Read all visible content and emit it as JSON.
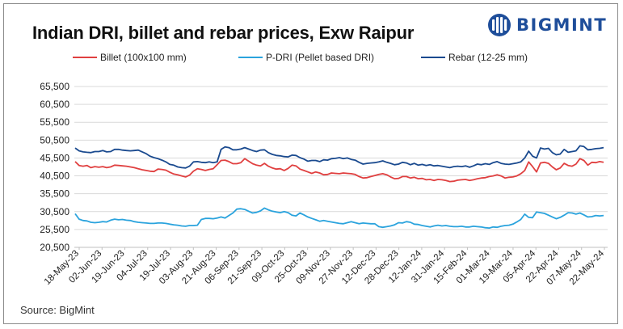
{
  "header": {
    "title": "Indian DRI, billet and rebar prices, Exw Raipur"
  },
  "brand": {
    "name": "BIGMINT",
    "color": "#1f4e9a"
  },
  "footer": {
    "source": "Source: BigMint"
  },
  "chart_data": {
    "type": "line",
    "title": "Indian DRI, billet and rebar prices, Exw Raipur",
    "xlabel": "",
    "ylabel": "",
    "ylim": [
      20500,
      65500
    ],
    "yticks": [
      "20,500",
      "25,500",
      "30,500",
      "35,500",
      "40,500",
      "45,500",
      "50,500",
      "55,500",
      "60,500",
      "65,500"
    ],
    "grid": true,
    "legend_position": "top",
    "x_tick_labels": [
      "18-May-23",
      "02-Jun-23",
      "19-Jun-23",
      "04-Jul-23",
      "19-Jul-23",
      "03-Aug-23",
      "21-Aug-23",
      "06-Sep-23",
      "21-Sep-23",
      "09-Oct-23",
      "25-Oct-23",
      "09-Nov-23",
      "27-Nov-23",
      "12-Dec-23",
      "28-Dec-23",
      "12-Jan-24",
      "31-Jan-24",
      "15-Feb-24",
      "01-Mar-24",
      "19-Mar-24",
      "05-Apr-24",
      "22-Apr-24",
      "07-May-24",
      "22-May-24"
    ],
    "series": [
      {
        "name": "Billet (100x100 mm)",
        "color": "#e04040",
        "values": [
          44500,
          43400,
          43200,
          43400,
          42800,
          43100,
          42900,
          43100,
          42800,
          43000,
          43500,
          43400,
          43300,
          43200,
          43000,
          42800,
          42500,
          42200,
          42000,
          41800,
          41700,
          42400,
          42300,
          42100,
          41500,
          41000,
          40800,
          40500,
          40200,
          40700,
          41800,
          42500,
          42300,
          42000,
          42300,
          42500,
          43600,
          44800,
          44900,
          44500,
          43900,
          43900,
          44200,
          45300,
          44600,
          43900,
          43500,
          43300,
          44000,
          43200,
          42700,
          42400,
          42500,
          42000,
          42600,
          43500,
          43300,
          42400,
          42000,
          41600,
          41200,
          41600,
          41300,
          40800,
          40900,
          41300,
          41200,
          41100,
          41300,
          41200,
          41100,
          40900,
          40300,
          39900,
          40000,
          40300,
          40600,
          40900,
          41100,
          40800,
          40200,
          39700,
          39800,
          40300,
          40300,
          39900,
          40100,
          39700,
          39800,
          39400,
          39500,
          39200,
          39500,
          39400,
          39200,
          38900,
          39000,
          39300,
          39400,
          39500,
          39200,
          39400,
          39700,
          39900,
          40000,
          40300,
          40500,
          40800,
          40500,
          39900,
          40100,
          40200,
          40500,
          41100,
          42000,
          44400,
          43100,
          41600,
          44100,
          44300,
          44000,
          43000,
          42200,
          42700,
          44000,
          43400,
          43200,
          43800,
          45300,
          44800,
          43500,
          44300,
          44200,
          44500,
          44300
        ]
      },
      {
        "name": "P-DRI (Pellet based DRI)",
        "color": "#2aa3dd",
        "values": [
          29900,
          28400,
          28000,
          27900,
          27500,
          27400,
          27500,
          27700,
          27600,
          28100,
          28400,
          28200,
          28300,
          28100,
          28000,
          27700,
          27500,
          27400,
          27300,
          27200,
          27200,
          27300,
          27300,
          27200,
          27000,
          26800,
          26700,
          26500,
          26400,
          26600,
          26600,
          26700,
          28300,
          28600,
          28600,
          28500,
          28700,
          29000,
          28700,
          29400,
          30100,
          31200,
          31300,
          31100,
          30600,
          30100,
          30300,
          30700,
          31500,
          31000,
          30600,
          30400,
          30200,
          30500,
          30200,
          29500,
          29300,
          30100,
          29600,
          29000,
          28600,
          28200,
          27800,
          28000,
          27800,
          27600,
          27400,
          27200,
          27100,
          27400,
          27700,
          27400,
          27100,
          27300,
          27200,
          27100,
          27100,
          26300,
          26100,
          26300,
          26500,
          26800,
          27400,
          27300,
          27700,
          27500,
          27000,
          26900,
          26600,
          26400,
          26200,
          26500,
          26700,
          26500,
          26600,
          26400,
          26300,
          26300,
          26400,
          26200,
          26200,
          26400,
          26300,
          26200,
          26000,
          25900,
          26200,
          26100,
          26400,
          26600,
          26700,
          27000,
          27600,
          28300,
          29800,
          28900,
          28800,
          30400,
          30200,
          30000,
          29500,
          29000,
          28500,
          28900,
          29500,
          30200,
          30100,
          29800,
          30100,
          29600,
          29000,
          29100,
          29400,
          29300,
          29400
        ]
      },
      {
        "name": "Rebar (12-25 mm)",
        "color": "#1a4a8f",
        "values": [
          48300,
          47500,
          47200,
          47100,
          47000,
          47300,
          47300,
          47600,
          47200,
          47300,
          47900,
          47900,
          47700,
          47600,
          47500,
          47600,
          47700,
          47200,
          46700,
          46000,
          45600,
          45300,
          44900,
          44400,
          43700,
          43500,
          43000,
          42800,
          42700,
          43200,
          44400,
          44500,
          44300,
          44200,
          44400,
          44200,
          44400,
          47900,
          48600,
          48400,
          47800,
          47800,
          48000,
          48400,
          48000,
          47600,
          47300,
          47700,
          47800,
          47000,
          46500,
          46200,
          46100,
          45900,
          45800,
          46300,
          46200,
          45600,
          45200,
          44600,
          44800,
          44800,
          44500,
          45000,
          44900,
          45300,
          45400,
          45600,
          45300,
          45500,
          45100,
          44900,
          44300,
          43800,
          44000,
          44100,
          44200,
          44400,
          44700,
          44300,
          44000,
          43600,
          43800,
          44300,
          44100,
          43600,
          44000,
          43500,
          43700,
          43400,
          43600,
          43300,
          43400,
          43200,
          43000,
          42800,
          43100,
          43200,
          43100,
          43300,
          42900,
          43300,
          43800,
          43600,
          43900,
          43700,
          44200,
          44500,
          44000,
          43800,
          43700,
          43900,
          44100,
          44400,
          45500,
          47400,
          46000,
          45500,
          48300,
          48000,
          48200,
          47000,
          46400,
          46600,
          47900,
          47100,
          47300,
          47500,
          48900,
          48700,
          47800,
          47900,
          48100,
          48200,
          48400
        ]
      }
    ]
  }
}
